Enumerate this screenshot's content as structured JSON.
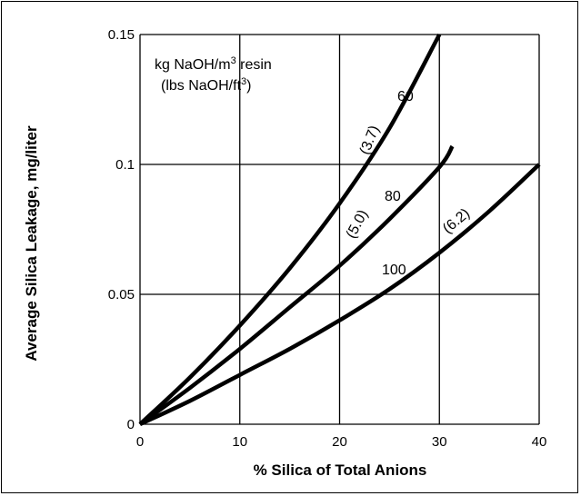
{
  "chart_data": {
    "type": "line",
    "xlabel": "% Silica of Total Anions",
    "ylabel": "Average Silica Leakage, mg/liter",
    "xlim": [
      0,
      40
    ],
    "ylim": [
      0,
      0.15
    ],
    "x_ticks": [
      "0",
      "10",
      "20",
      "30",
      "40"
    ],
    "y_ticks": [
      "0",
      "0.05",
      "0.1",
      "0.15"
    ],
    "grid": true,
    "legend": {
      "line1_prefix": "kg NaOH/m",
      "line1_sup": "3",
      "line1_suffix": " resin",
      "line2_prefix": "(lbs NaOH/ft",
      "line2_sup": "3",
      "line2_suffix": ")"
    },
    "series": [
      {
        "name": "60",
        "alt_label": "(3.7)",
        "x": [
          0,
          5,
          10,
          15,
          20,
          25,
          30
        ],
        "y": [
          0,
          0.018,
          0.038,
          0.06,
          0.085,
          0.114,
          0.15
        ]
      },
      {
        "name": "80",
        "alt_label": "(5.0)",
        "x": [
          0,
          5,
          10,
          15,
          20,
          25,
          30,
          31.3
        ],
        "y": [
          0,
          0.014,
          0.029,
          0.045,
          0.061,
          0.079,
          0.099,
          0.107
        ]
      },
      {
        "name": "100",
        "alt_label": "(6.2)",
        "x": [
          0,
          5,
          10,
          15,
          20,
          25,
          30,
          35,
          40
        ],
        "y": [
          0,
          0.009,
          0.019,
          0.029,
          0.04,
          0.052,
          0.066,
          0.082,
          0.1
        ]
      }
    ]
  }
}
